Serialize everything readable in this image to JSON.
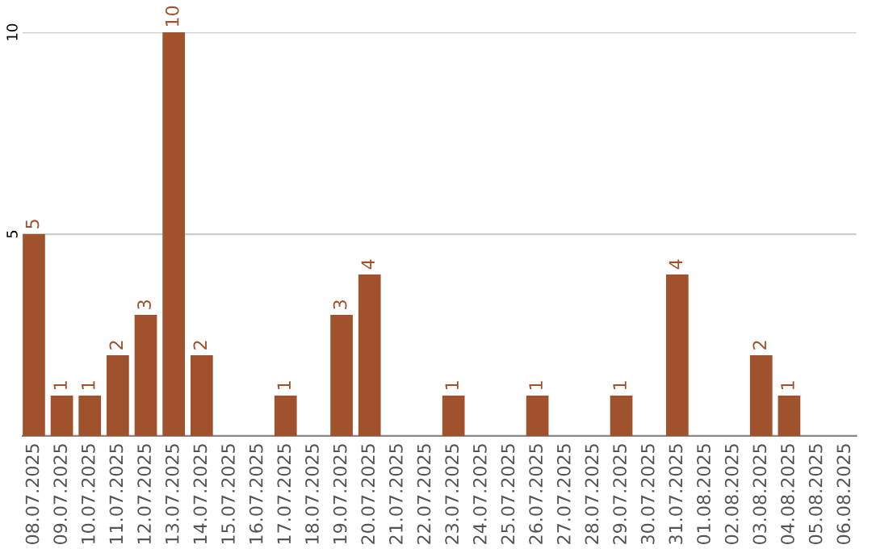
{
  "chart_data": {
    "type": "bar",
    "categories": [
      "08.07.2025",
      "09.07.2025",
      "10.07.2025",
      "11.07.2025",
      "12.07.2025",
      "13.07.2025",
      "14.07.2025",
      "15.07.2025",
      "16.07.2025",
      "17.07.2025",
      "18.07.2025",
      "19.07.2025",
      "20.07.2025",
      "21.07.2025",
      "22.07.2025",
      "23.07.2025",
      "24.07.2025",
      "25.07.2025",
      "26.07.2025",
      "27.07.2025",
      "28.07.2025",
      "29.07.2025",
      "30.07.2025",
      "31.07.2025",
      "01.08.2025",
      "02.08.2025",
      "03.08.2025",
      "04.08.2025",
      "05.08.2025",
      "06.08.2025"
    ],
    "values": [
      5,
      1,
      1,
      2,
      3,
      10,
      2,
      0,
      0,
      1,
      0,
      3,
      4,
      0,
      0,
      1,
      0,
      0,
      1,
      0,
      0,
      1,
      0,
      4,
      0,
      0,
      2,
      1,
      0,
      0
    ],
    "value_labels": [
      "5",
      "1",
      "1",
      "2",
      "3",
      "10",
      "2",
      null,
      null,
      "1",
      null,
      "3",
      "4",
      null,
      null,
      "1",
      null,
      null,
      "1",
      null,
      null,
      "1",
      null,
      "4",
      null,
      null,
      "2",
      "1",
      null,
      null
    ],
    "color": "#a0522d",
    "ylim": [
      0,
      10
    ],
    "yticks": [
      5,
      10
    ],
    "grid": "y"
  }
}
